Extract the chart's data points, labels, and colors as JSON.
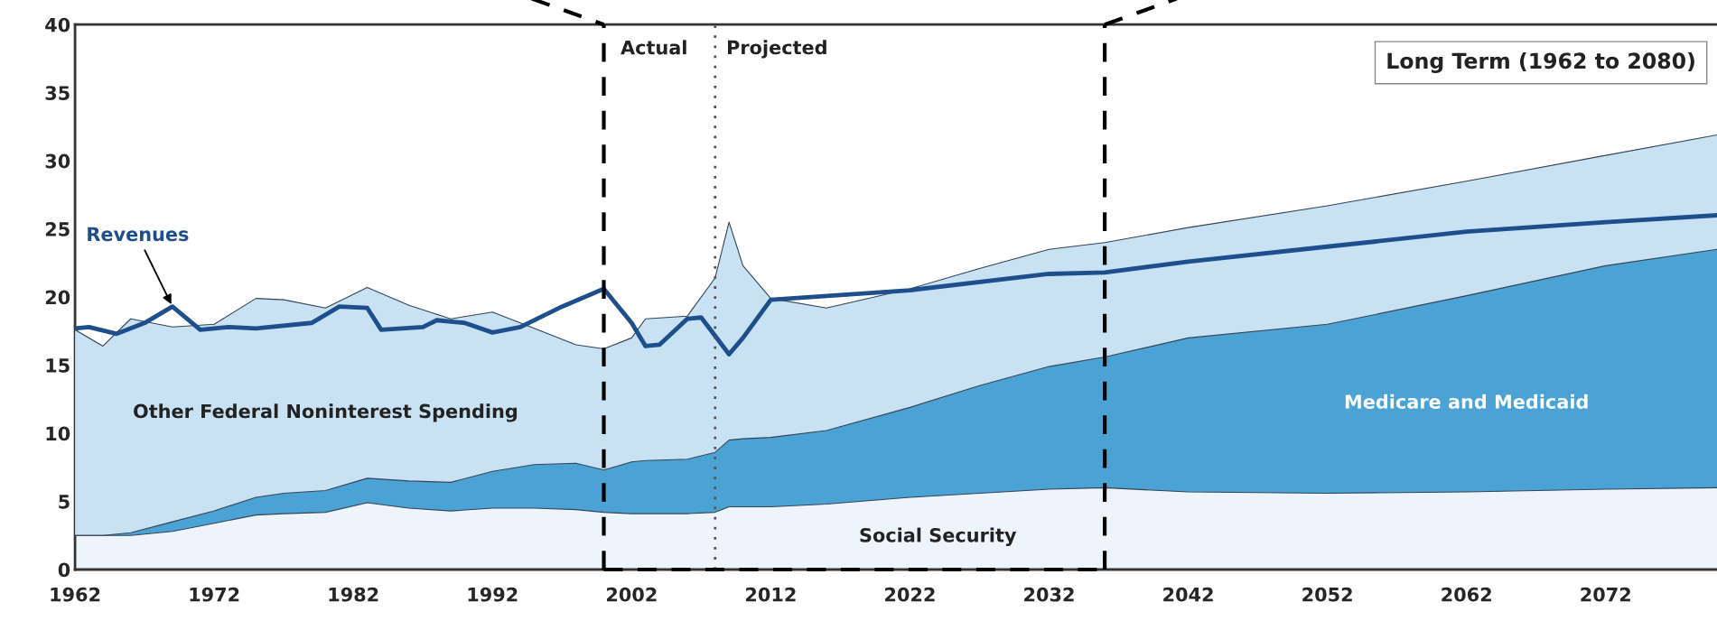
{
  "chart_data": {
    "type": "area",
    "stacked": true,
    "x": [
      1962,
      1964,
      1966,
      1969,
      1972,
      1975,
      1977,
      1980,
      1983,
      1986,
      1989,
      1992,
      1995,
      1998,
      2000,
      2002,
      2003,
      2006,
      2008,
      2009,
      2010,
      2012,
      2016,
      2022,
      2027,
      2032,
      2036,
      2042,
      2052,
      2062,
      2072,
      2080
    ],
    "series": [
      {
        "name": "Social Security",
        "color": "#eef4fb",
        "values": [
          2.5,
          2.5,
          2.5,
          2.8,
          3.4,
          4.0,
          4.1,
          4.2,
          4.9,
          4.5,
          4.3,
          4.5,
          4.5,
          4.4,
          4.2,
          4.1,
          4.1,
          4.1,
          4.2,
          4.6,
          4.6,
          4.6,
          4.8,
          5.3,
          5.6,
          5.9,
          6.0,
          5.7,
          5.6,
          5.7,
          5.9,
          6.0
        ]
      },
      {
        "name": "Medicare and Medicaid",
        "color": "#4aa3d4",
        "values": [
          0.0,
          0.0,
          0.2,
          0.7,
          0.9,
          1.3,
          1.5,
          1.6,
          1.8,
          2.0,
          2.1,
          2.7,
          3.2,
          3.4,
          3.1,
          3.8,
          3.9,
          4.0,
          4.4,
          4.9,
          5.0,
          5.1,
          5.4,
          6.6,
          7.9,
          9.0,
          9.6,
          11.3,
          12.4,
          14.4,
          16.4,
          17.5
        ]
      },
      {
        "name": "Other Federal Noninterest Spending",
        "color": "#c8e2f4",
        "values": [
          15.1,
          13.9,
          15.7,
          14.3,
          13.7,
          14.6,
          14.2,
          13.4,
          14.0,
          12.9,
          12.0,
          11.7,
          10.0,
          8.7,
          8.9,
          9.1,
          10.4,
          10.5,
          12.8,
          16.0,
          12.7,
          10.2,
          9.0,
          8.7,
          8.6,
          8.6,
          8.4,
          8.1,
          8.7,
          8.4,
          8.1,
          8.4
        ]
      },
      {
        "name": "Revenues",
        "type": "line",
        "color": "#1f4e8c",
        "x": [
          1962,
          1963,
          1965,
          1967,
          1969,
          1971,
          1973,
          1975,
          1979,
          1981,
          1983,
          1984,
          1987,
          1988,
          1990,
          1992,
          1994,
          1997,
          2000,
          2002,
          2003,
          2004,
          2006,
          2007,
          2009,
          2010,
          2012,
          2022,
          2032,
          2036,
          2042,
          2052,
          2062,
          2072,
          2080
        ],
        "values": [
          17.7,
          17.8,
          17.3,
          18.1,
          19.3,
          17.6,
          17.8,
          17.7,
          18.1,
          19.3,
          19.2,
          17.6,
          17.8,
          18.3,
          18.1,
          17.4,
          17.8,
          19.3,
          20.6,
          18.1,
          16.4,
          16.5,
          18.4,
          18.5,
          15.8,
          17.0,
          19.8,
          20.5,
          21.7,
          21.8,
          22.6,
          23.7,
          24.8,
          25.5,
          26.0
        ]
      }
    ],
    "xlim": [
      1962,
      2080
    ],
    "xticks": [
      1962,
      1972,
      1982,
      1992,
      2002,
      2012,
      2022,
      2032,
      2042,
      2052,
      2062,
      2072
    ],
    "ylim": [
      0,
      40
    ],
    "yticks": [
      0,
      5,
      10,
      15,
      20,
      25,
      30,
      35,
      40
    ],
    "ref_lines": [
      {
        "axis": "x",
        "value": 2000,
        "color": "#000000",
        "line_style": "dashed"
      },
      {
        "axis": "x",
        "value": 2036,
        "color": "#000000",
        "line_style": "dashed"
      },
      {
        "axis": "x",
        "value": 2008,
        "color": "#555555",
        "line_style": "dotted"
      }
    ],
    "annotations": [
      "Actual",
      "Projected",
      "Long Term (1962 to 2080)"
    ],
    "grid": false,
    "legend": false
  }
}
